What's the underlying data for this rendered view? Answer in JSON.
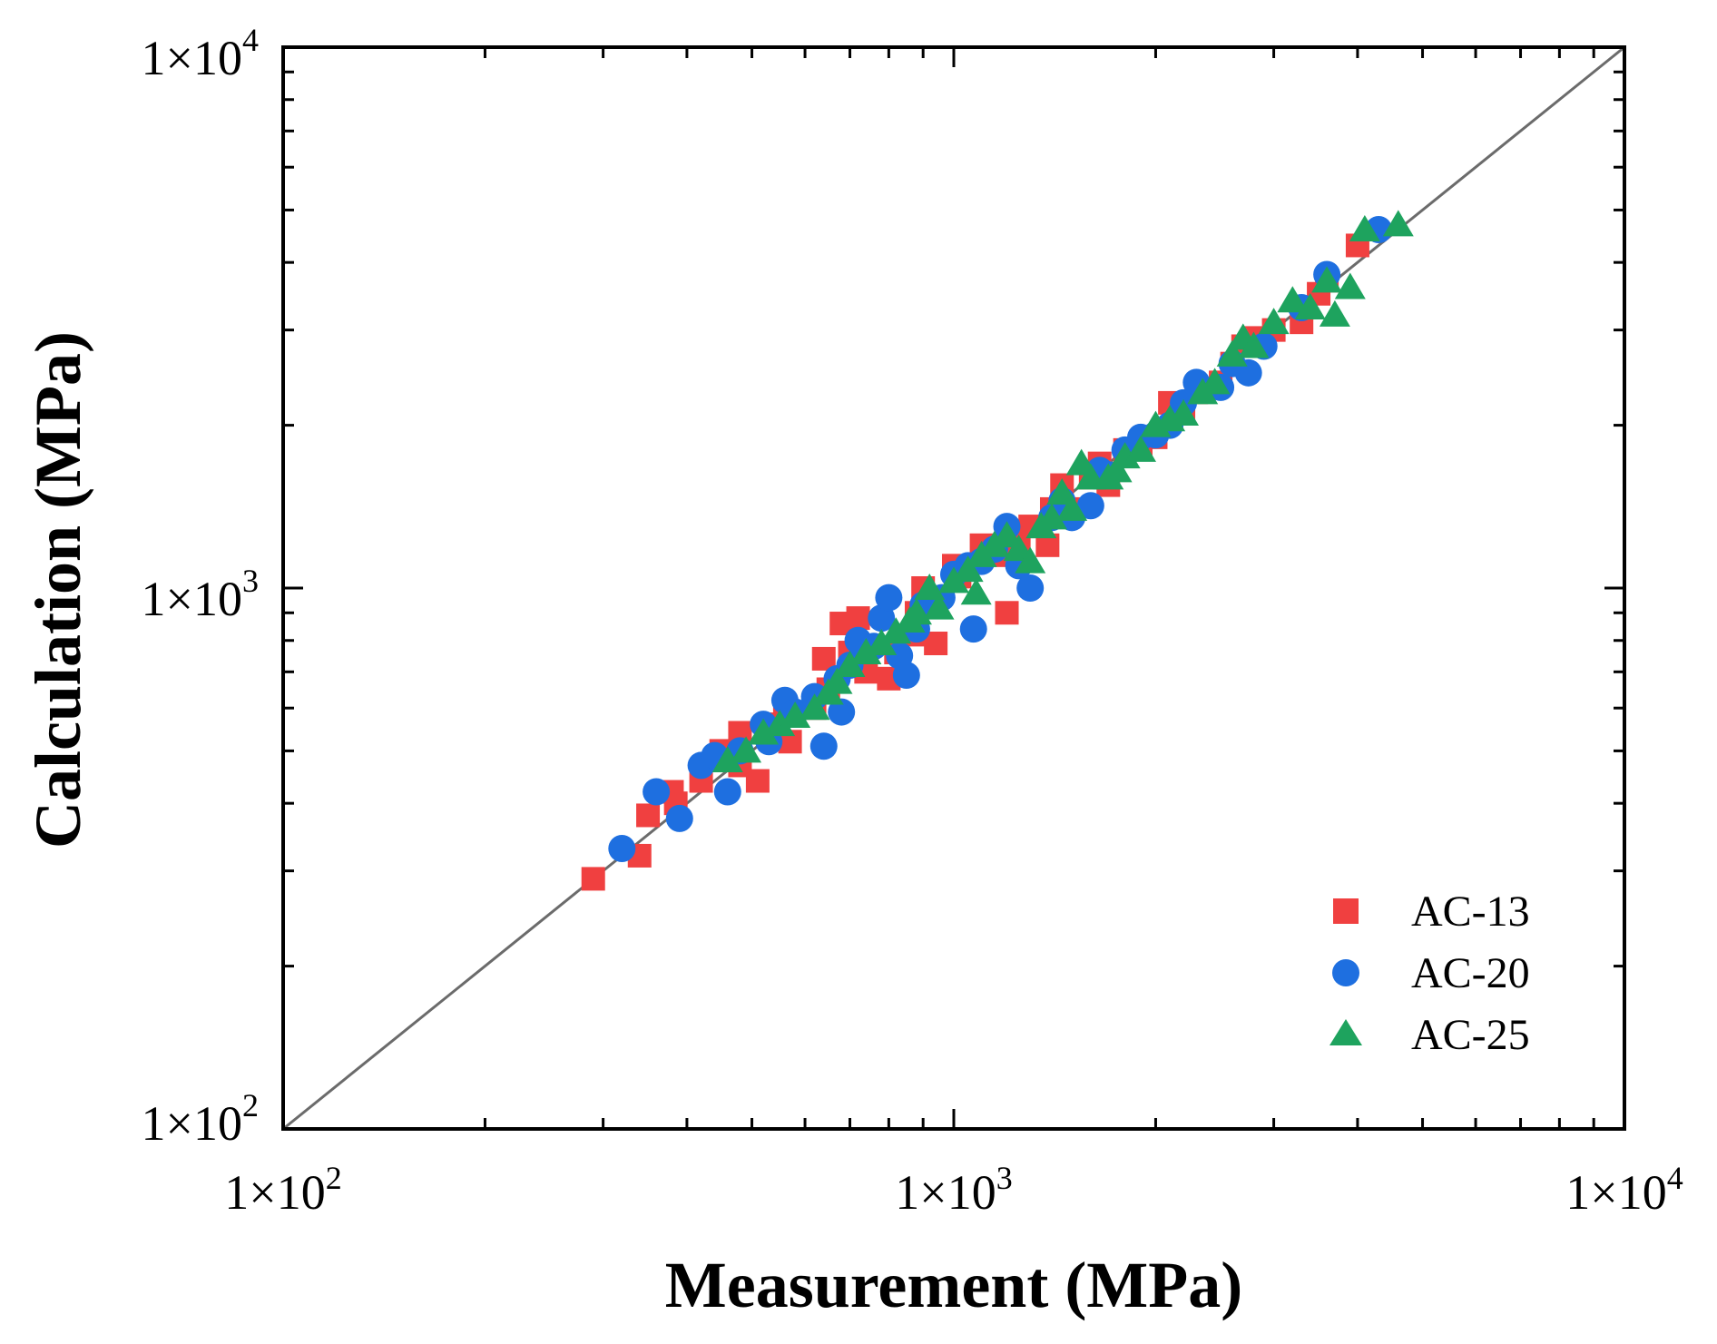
{
  "chart_data": {
    "type": "scatter",
    "xlabel": "Measurement (MPa)",
    "ylabel": "Calculation (MPa)",
    "xscale": "log",
    "yscale": "log",
    "xlim": [
      100,
      10000
    ],
    "ylim": [
      100,
      10000
    ],
    "major_ticks": [
      100,
      1000,
      10000
    ],
    "x_tick_labels": [
      {
        "base": "1×10",
        "exp": "2"
      },
      {
        "base": "1×10",
        "exp": "3"
      },
      {
        "base": "1×10",
        "exp": "4"
      }
    ],
    "y_tick_labels": [
      {
        "base": "1×10",
        "exp": "2"
      },
      {
        "base": "1×10",
        "exp": "3"
      },
      {
        "base": "1×10",
        "exp": "4"
      }
    ],
    "reference_line": {
      "type": "y=x",
      "color": "#6b6b6b"
    },
    "legend_position": "bottom-right",
    "series": [
      {
        "name": "AC-13",
        "marker": "square",
        "color": "#f04040",
        "points": [
          [
            290,
            290
          ],
          [
            340,
            320
          ],
          [
            350,
            380
          ],
          [
            380,
            420
          ],
          [
            385,
            400
          ],
          [
            420,
            440
          ],
          [
            450,
            500
          ],
          [
            480,
            470
          ],
          [
            510,
            440
          ],
          [
            480,
            540
          ],
          [
            530,
            560
          ],
          [
            560,
            600
          ],
          [
            570,
            520
          ],
          [
            620,
            600
          ],
          [
            650,
            650
          ],
          [
            640,
            740
          ],
          [
            700,
            760
          ],
          [
            680,
            860
          ],
          [
            720,
            880
          ],
          [
            740,
            700
          ],
          [
            800,
            680
          ],
          [
            820,
            760
          ],
          [
            870,
            820
          ],
          [
            880,
            900
          ],
          [
            900,
            1000
          ],
          [
            940,
            790
          ],
          [
            1000,
            1100
          ],
          [
            1020,
            1050
          ],
          [
            1100,
            1200
          ],
          [
            1150,
            1150
          ],
          [
            1200,
            900
          ],
          [
            1250,
            1200
          ],
          [
            1300,
            1300
          ],
          [
            1380,
            1200
          ],
          [
            1400,
            1400
          ],
          [
            1450,
            1550
          ],
          [
            1500,
            1400
          ],
          [
            1600,
            1600
          ],
          [
            1650,
            1700
          ],
          [
            1700,
            1550
          ],
          [
            1800,
            1800
          ],
          [
            1900,
            1850
          ],
          [
            2000,
            1900
          ],
          [
            2100,
            2200
          ],
          [
            2200,
            2100
          ],
          [
            2300,
            2300
          ],
          [
            2500,
            2400
          ],
          [
            2600,
            2600
          ],
          [
            2700,
            2800
          ],
          [
            2800,
            2900
          ],
          [
            3000,
            3000
          ],
          [
            3300,
            3100
          ],
          [
            3500,
            3500
          ],
          [
            3600,
            3700
          ],
          [
            4000,
            4300
          ]
        ]
      },
      {
        "name": "AC-20",
        "marker": "circle",
        "color": "#1e6fe0",
        "points": [
          [
            320,
            330
          ],
          [
            360,
            420
          ],
          [
            390,
            375
          ],
          [
            420,
            470
          ],
          [
            440,
            490
          ],
          [
            460,
            420
          ],
          [
            480,
            500
          ],
          [
            520,
            560
          ],
          [
            530,
            520
          ],
          [
            560,
            620
          ],
          [
            580,
            590
          ],
          [
            620,
            630
          ],
          [
            640,
            510
          ],
          [
            670,
            680
          ],
          [
            680,
            590
          ],
          [
            700,
            720
          ],
          [
            720,
            800
          ],
          [
            760,
            780
          ],
          [
            780,
            880
          ],
          [
            800,
            960
          ],
          [
            830,
            750
          ],
          [
            850,
            690
          ],
          [
            880,
            840
          ],
          [
            900,
            930
          ],
          [
            960,
            960
          ],
          [
            1000,
            1060
          ],
          [
            1050,
            1100
          ],
          [
            1070,
            840
          ],
          [
            1100,
            1120
          ],
          [
            1150,
            1180
          ],
          [
            1200,
            1300
          ],
          [
            1250,
            1100
          ],
          [
            1300,
            1000
          ],
          [
            1400,
            1350
          ],
          [
            1450,
            1450
          ],
          [
            1500,
            1350
          ],
          [
            1600,
            1420
          ],
          [
            1650,
            1650
          ],
          [
            1700,
            1620
          ],
          [
            1800,
            1800
          ],
          [
            1900,
            1900
          ],
          [
            2000,
            1920
          ],
          [
            2100,
            2000
          ],
          [
            2200,
            2200
          ],
          [
            2300,
            2400
          ],
          [
            2500,
            2350
          ],
          [
            2600,
            2600
          ],
          [
            2750,
            2500
          ],
          [
            2900,
            2800
          ],
          [
            3300,
            3300
          ],
          [
            3600,
            3800
          ],
          [
            4300,
            4600
          ]
        ]
      },
      {
        "name": "AC-25",
        "marker": "triangle",
        "color": "#1ea35e",
        "points": [
          [
            460,
            480
          ],
          [
            490,
            500
          ],
          [
            520,
            540
          ],
          [
            550,
            560
          ],
          [
            580,
            580
          ],
          [
            620,
            600
          ],
          [
            650,
            640
          ],
          [
            670,
            670
          ],
          [
            700,
            720
          ],
          [
            740,
            760
          ],
          [
            780,
            790
          ],
          [
            820,
            830
          ],
          [
            860,
            870
          ],
          [
            880,
            900
          ],
          [
            920,
            1000
          ],
          [
            950,
            920
          ],
          [
            1000,
            1030
          ],
          [
            1050,
            1080
          ],
          [
            1080,
            980
          ],
          [
            1100,
            1150
          ],
          [
            1150,
            1200
          ],
          [
            1200,
            1250
          ],
          [
            1250,
            1180
          ],
          [
            1300,
            1120
          ],
          [
            1350,
            1300
          ],
          [
            1400,
            1350
          ],
          [
            1450,
            1500
          ],
          [
            1500,
            1400
          ],
          [
            1550,
            1700
          ],
          [
            1600,
            1600
          ],
          [
            1700,
            1600
          ],
          [
            1750,
            1650
          ],
          [
            1800,
            1750
          ],
          [
            1900,
            1800
          ],
          [
            2000,
            2000
          ],
          [
            2100,
            2050
          ],
          [
            2200,
            2100
          ],
          [
            2350,
            2300
          ],
          [
            2450,
            2400
          ],
          [
            2600,
            2700
          ],
          [
            2700,
            2900
          ],
          [
            2800,
            2800
          ],
          [
            3000,
            3100
          ],
          [
            3200,
            3400
          ],
          [
            3400,
            3300
          ],
          [
            3600,
            3700
          ],
          [
            3700,
            3200
          ],
          [
            3900,
            3600
          ],
          [
            4100,
            4600
          ],
          [
            4600,
            4700
          ]
        ]
      }
    ]
  }
}
